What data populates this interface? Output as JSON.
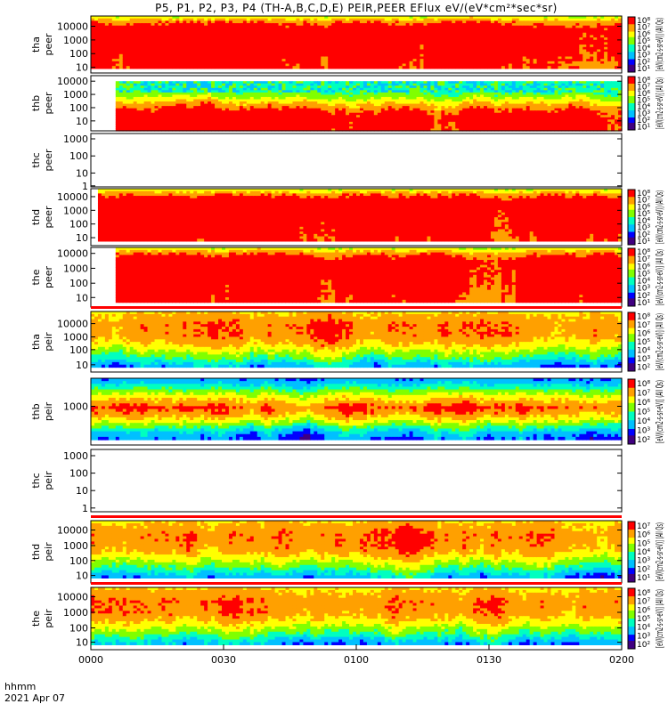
{
  "chart_data": {
    "type": "heatmap",
    "title": "P5, P1, P2, P3, P4 (TH-A,B,C,D,E) PEIR,PEER EFlux eV/(eV*cm²*sec*sr)",
    "x_axis": {
      "tick_labels": [
        "0000",
        "0030",
        "0100",
        "0130",
        "0200"
      ],
      "range": [
        "00:00",
        "02:00"
      ],
      "label_unit": "hhmm",
      "label_date": "2021 Apr 07"
    },
    "panels": [
      {
        "probe": "tha",
        "species": "peer",
        "y_ticks": [
          "10000",
          "1000",
          "100",
          "10"
        ],
        "colorbar_ticks": [
          "10⁸",
          "10⁷",
          "10⁶",
          "10⁵",
          "10⁴",
          "10³",
          "10²",
          "10¹"
        ],
        "colorbar_label": "[eV/(cm2-s-sr-eV)] (All Qs)",
        "has_data": true,
        "data_start_min": 0,
        "low_energy_cut": 10
      },
      {
        "probe": "thb",
        "species": "peer",
        "y_ticks": [
          "10000",
          "1000",
          "100",
          "10"
        ],
        "colorbar_ticks": [
          "10⁸",
          "10⁷",
          "10⁶",
          "10⁵",
          "10⁴",
          "10³",
          "10²",
          "10¹"
        ],
        "colorbar_label": "[eV/(cm2-s-sr-eV)] (All Qs)",
        "has_data": true,
        "data_start_min": 5,
        "low_energy_cut": 10
      },
      {
        "probe": "thc",
        "species": "peer",
        "y_ticks": [
          "1000",
          "100",
          "10",
          "1"
        ],
        "colorbar_label": "",
        "has_data": false
      },
      {
        "probe": "thd",
        "species": "peer",
        "y_ticks": [
          "10000",
          "1000",
          "100",
          "10"
        ],
        "colorbar_ticks": [
          "10⁸",
          "10⁷",
          "10⁶",
          "10⁵",
          "10⁴",
          "10³",
          "10²",
          "10¹"
        ],
        "colorbar_label": "[eV/(cm2-s-sr-eV)] (All Qs)",
        "has_data": true,
        "data_start_min": 1,
        "low_energy_cut": 8
      },
      {
        "probe": "the",
        "species": "peer",
        "y_ticks": [
          "10000",
          "1000",
          "100",
          "10"
        ],
        "colorbar_ticks": [
          "10⁸",
          "10⁷",
          "10⁶",
          "10⁵",
          "10⁴",
          "10³",
          "10²",
          "10¹"
        ],
        "colorbar_label": "[eV/(cm2-s-sr-eV)] (All Qs)",
        "has_data": true,
        "data_start_min": 5,
        "low_energy_cut": 8
      },
      {
        "probe": "tha",
        "species": "peir",
        "y_ticks": [
          "10000",
          "1000",
          "100",
          "10"
        ],
        "colorbar_ticks": [
          "10⁸",
          "10⁷",
          "10⁶",
          "10⁵",
          "10⁴",
          "10³",
          "10²"
        ],
        "colorbar_label": "[eV/(cm2-s-sr-eV)] (All Qs)",
        "has_data": true,
        "data_start_min": 0,
        "low_energy_cut": 7
      },
      {
        "probe": "thb",
        "species": "peir",
        "y_ticks": [
          "1000"
        ],
        "colorbar_ticks": [
          "10⁸",
          "10⁷",
          "10⁶",
          "10⁵",
          "10⁴",
          "10³",
          "10²"
        ],
        "colorbar_label": "[eV/(cm2-s-sr-eV)] (All Qs)",
        "has_data": true,
        "data_start_min": 0,
        "low_energy_cut": 0
      },
      {
        "probe": "thc",
        "species": "peir",
        "y_ticks": [
          "1000",
          "100",
          "10",
          "1"
        ],
        "colorbar_label": "",
        "has_data": false
      },
      {
        "probe": "thd",
        "species": "peir",
        "y_ticks": [
          "10000",
          "1000",
          "100",
          "10"
        ],
        "colorbar_ticks": [
          "10⁷",
          "10⁶",
          "10⁵",
          "10⁴",
          "10³",
          "10²",
          "10¹"
        ],
        "colorbar_label": "[eV/(cm2-s-sr-eV)] (All Qs)",
        "has_data": true,
        "data_start_min": 0,
        "low_energy_cut": 7
      },
      {
        "probe": "the",
        "species": "peir",
        "y_ticks": [
          "10000",
          "1000",
          "100",
          "10"
        ],
        "colorbar_ticks": [
          "10⁸",
          "10⁷",
          "10⁶",
          "10⁵",
          "10⁴",
          "10³",
          "10²"
        ],
        "colorbar_label": "[eV/(cm2-s-sr-eV)] (All Qs)",
        "has_data": true,
        "data_start_min": 0,
        "low_energy_cut": 7
      }
    ],
    "colorscale": [
      "#400080",
      "#0000ff",
      "#00c0ff",
      "#00ffc0",
      "#80ff00",
      "#ffff00",
      "#ffa000",
      "#ff0000"
    ]
  }
}
